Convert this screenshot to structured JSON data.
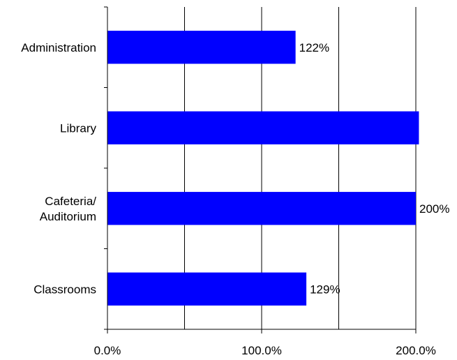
{
  "chart_data": {
    "type": "bar",
    "orientation": "horizontal",
    "title": "",
    "xlabel": "",
    "ylabel": "",
    "xlim": [
      0,
      200
    ],
    "x_tick_values": [
      0,
      100,
      200
    ],
    "x_tick_labels": [
      "0.0%",
      "100.0%",
      "200.0%"
    ],
    "grid": "vertical",
    "legend": "none",
    "bar_color": "#0000ff",
    "categories": [
      {
        "label": [
          "Administration"
        ],
        "value": 122,
        "value_label": "122%"
      },
      {
        "label": [
          "Library"
        ],
        "value": 202,
        "value_label": ""
      },
      {
        "label": [
          "Cafeteria/",
          "Auditorium"
        ],
        "value": 200,
        "value_label": "200%"
      },
      {
        "label": [
          "Classrooms"
        ],
        "value": 129,
        "value_label": "129%"
      }
    ]
  }
}
